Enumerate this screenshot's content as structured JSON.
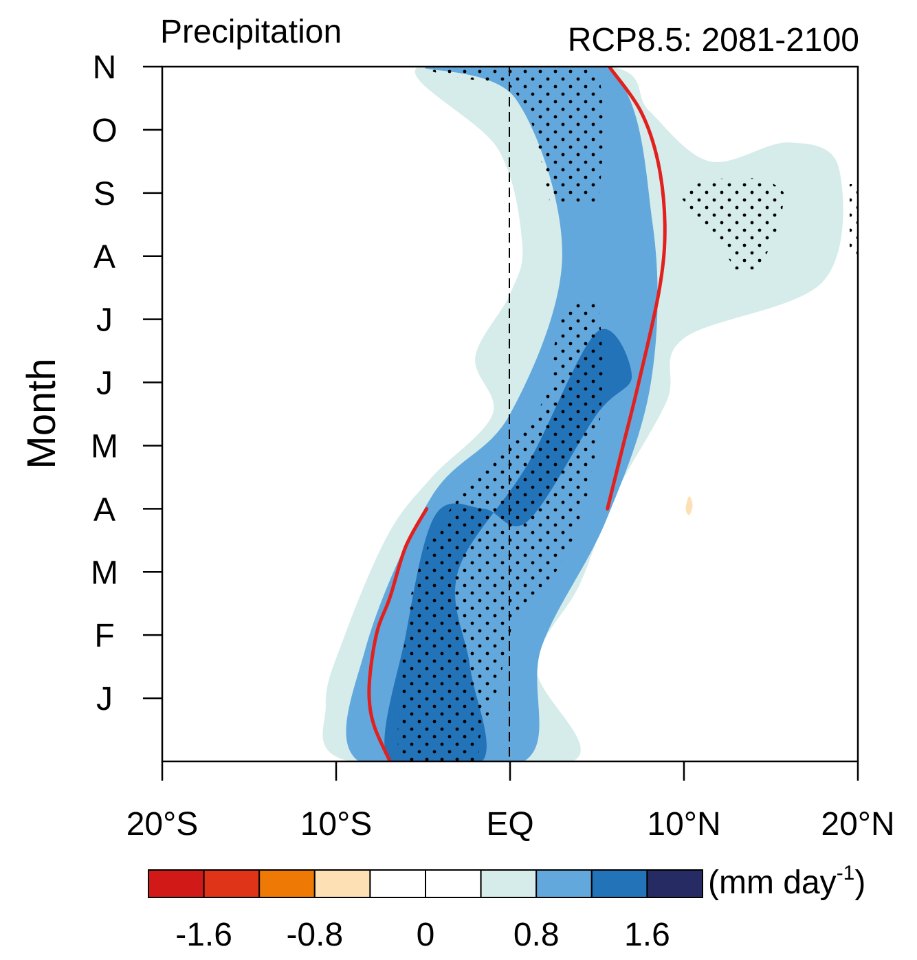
{
  "chart_data": {
    "type": "heatmap",
    "title": "Precipitation",
    "subtitle": "RCP8.5: 2081-2100",
    "xlabel": "",
    "ylabel": "Month",
    "xlim": [
      -20,
      20
    ],
    "x_ticks": [
      {
        "value": -20,
        "label": "20°S"
      },
      {
        "value": -10,
        "label": "10°S"
      },
      {
        "value": 0,
        "label": "EQ"
      },
      {
        "value": 10,
        "label": "10°N"
      },
      {
        "value": 20,
        "label": "20°N"
      }
    ],
    "y_ticks": [
      {
        "value": 1,
        "label": "J"
      },
      {
        "value": 2,
        "label": "F"
      },
      {
        "value": 3,
        "label": "M"
      },
      {
        "value": 4,
        "label": "A"
      },
      {
        "value": 5,
        "label": "M"
      },
      {
        "value": 6,
        "label": "J"
      },
      {
        "value": 7,
        "label": "J"
      },
      {
        "value": 8,
        "label": "A"
      },
      {
        "value": 9,
        "label": "S"
      },
      {
        "value": 10,
        "label": "O"
      },
      {
        "value": 11,
        "label": "N"
      }
    ],
    "ylim": [
      0,
      11
    ],
    "colorbar": {
      "unit_label": "(mm day",
      "unit_exponent": "-1",
      "unit_close": ")",
      "bins": [
        {
          "from": -2.0,
          "to": -1.6,
          "color": "#d11a17"
        },
        {
          "from": -1.6,
          "to": -1.2,
          "color": "#e03419"
        },
        {
          "from": -1.2,
          "to": -0.8,
          "color": "#ee7a05"
        },
        {
          "from": -0.8,
          "to": -0.4,
          "color": "#fde1b4"
        },
        {
          "from": -0.4,
          "to": 0.0,
          "color": "#ffffff"
        },
        {
          "from": 0.0,
          "to": 0.4,
          "color": "#ffffff"
        },
        {
          "from": 0.4,
          "to": 0.8,
          "color": "#d5ecea"
        },
        {
          "from": 0.8,
          "to": 1.2,
          "color": "#62a8dc"
        },
        {
          "from": 1.2,
          "to": 1.6,
          "color": "#2373b9"
        },
        {
          "from": 1.6,
          "to": 2.0,
          "color": "#272b63"
        }
      ],
      "tick_labels": [
        {
          "value": -1.6,
          "label": "-1.6"
        },
        {
          "value": -0.8,
          "label": "-0.8"
        },
        {
          "value": 0.0,
          "label": "0"
        },
        {
          "value": 0.8,
          "label": "0.8"
        },
        {
          "value": 1.6,
          "label": "1.6"
        }
      ]
    },
    "itcz_line_color": "#e2201e",
    "itcz_lines": [
      {
        "name": "",
        "points": [
          [
            -6.9,
            0.0
          ],
          [
            -7.8,
            0.55
          ],
          [
            -8.1,
            1.0
          ],
          [
            -8.0,
            1.5
          ],
          [
            -7.6,
            2.1
          ],
          [
            -6.9,
            2.6
          ],
          [
            -6.0,
            3.4
          ],
          [
            -4.8,
            4.0
          ]
        ]
      },
      {
        "name": "",
        "points": [
          [
            5.6,
            4.0
          ],
          [
            6.5,
            5.0
          ],
          [
            7.4,
            6.0
          ],
          [
            8.6,
            7.5
          ],
          [
            8.9,
            8.5
          ],
          [
            8.5,
            9.5
          ],
          [
            7.5,
            10.3
          ],
          [
            5.7,
            11.0
          ]
        ]
      }
    ],
    "contour_fills": [
      {
        "level": "0.4–0.8",
        "color": "#d5ecea",
        "boundary_points": [
          [
            -9.2,
            0
          ],
          [
            -10.6,
            0.9
          ],
          [
            -9.5,
            2.0
          ],
          [
            -7.0,
            3.6
          ],
          [
            -4.5,
            4.5
          ],
          [
            -1.0,
            5.5
          ],
          [
            -2.0,
            6.4
          ],
          [
            0,
            7.4
          ],
          [
            0.7,
            8.2
          ],
          [
            -0.7,
            9.7
          ],
          [
            -5.3,
            11
          ],
          [
            5.8,
            11
          ],
          [
            8.0,
            10.3
          ],
          [
            11.5,
            9.5
          ],
          [
            16.0,
            9.8
          ],
          [
            18.9,
            9.4
          ],
          [
            18.0,
            7.6
          ],
          [
            10.0,
            6.7
          ],
          [
            9.0,
            5.7
          ],
          [
            6.0,
            4.2
          ],
          [
            4.0,
            2.8
          ],
          [
            1.5,
            1.5
          ],
          [
            3.6,
            0
          ]
        ]
      },
      {
        "level": "0.8–1.2",
        "color": "#62a8dc",
        "boundary_points": [
          [
            -8.7,
            0
          ],
          [
            -8.3,
            1.8
          ],
          [
            -4.5,
            4.2
          ],
          [
            0,
            5.5
          ],
          [
            3.0,
            8.0
          ],
          [
            0.3,
            10.5
          ],
          [
            -4.8,
            11
          ],
          [
            5.5,
            11
          ],
          [
            8.2,
            8.5
          ],
          [
            8.1,
            6.0
          ],
          [
            5.5,
            3.8
          ],
          [
            1.8,
            1.8
          ],
          [
            0.8,
            0
          ]
        ]
      },
      {
        "level": "1.2–1.6",
        "color": "#2373b9",
        "boundary_points": [
          [
            -7.0,
            0
          ],
          [
            -6.0,
            2.0
          ],
          [
            -4.3,
            3.9
          ],
          [
            -1.5,
            4.0
          ],
          [
            1.0,
            3.8
          ],
          [
            5.0,
            5.5
          ],
          [
            7.0,
            6.1
          ],
          [
            5.0,
            6.8
          ],
          [
            1.0,
            4.7
          ],
          [
            -3.0,
            3.0
          ],
          [
            -2.3,
            1.5
          ],
          [
            -1.6,
            0
          ]
        ]
      },
      {
        "level": "-0.8–-0.4",
        "color": "#fde1b4",
        "boundary_points": [
          [
            10.1,
            4.0
          ],
          [
            10.3,
            3.9
          ],
          [
            10.5,
            4.05
          ],
          [
            10.3,
            4.2
          ]
        ]
      }
    ],
    "stippling": "significance dots over main rainband and 13°N-15°N Aug-Sep"
  }
}
